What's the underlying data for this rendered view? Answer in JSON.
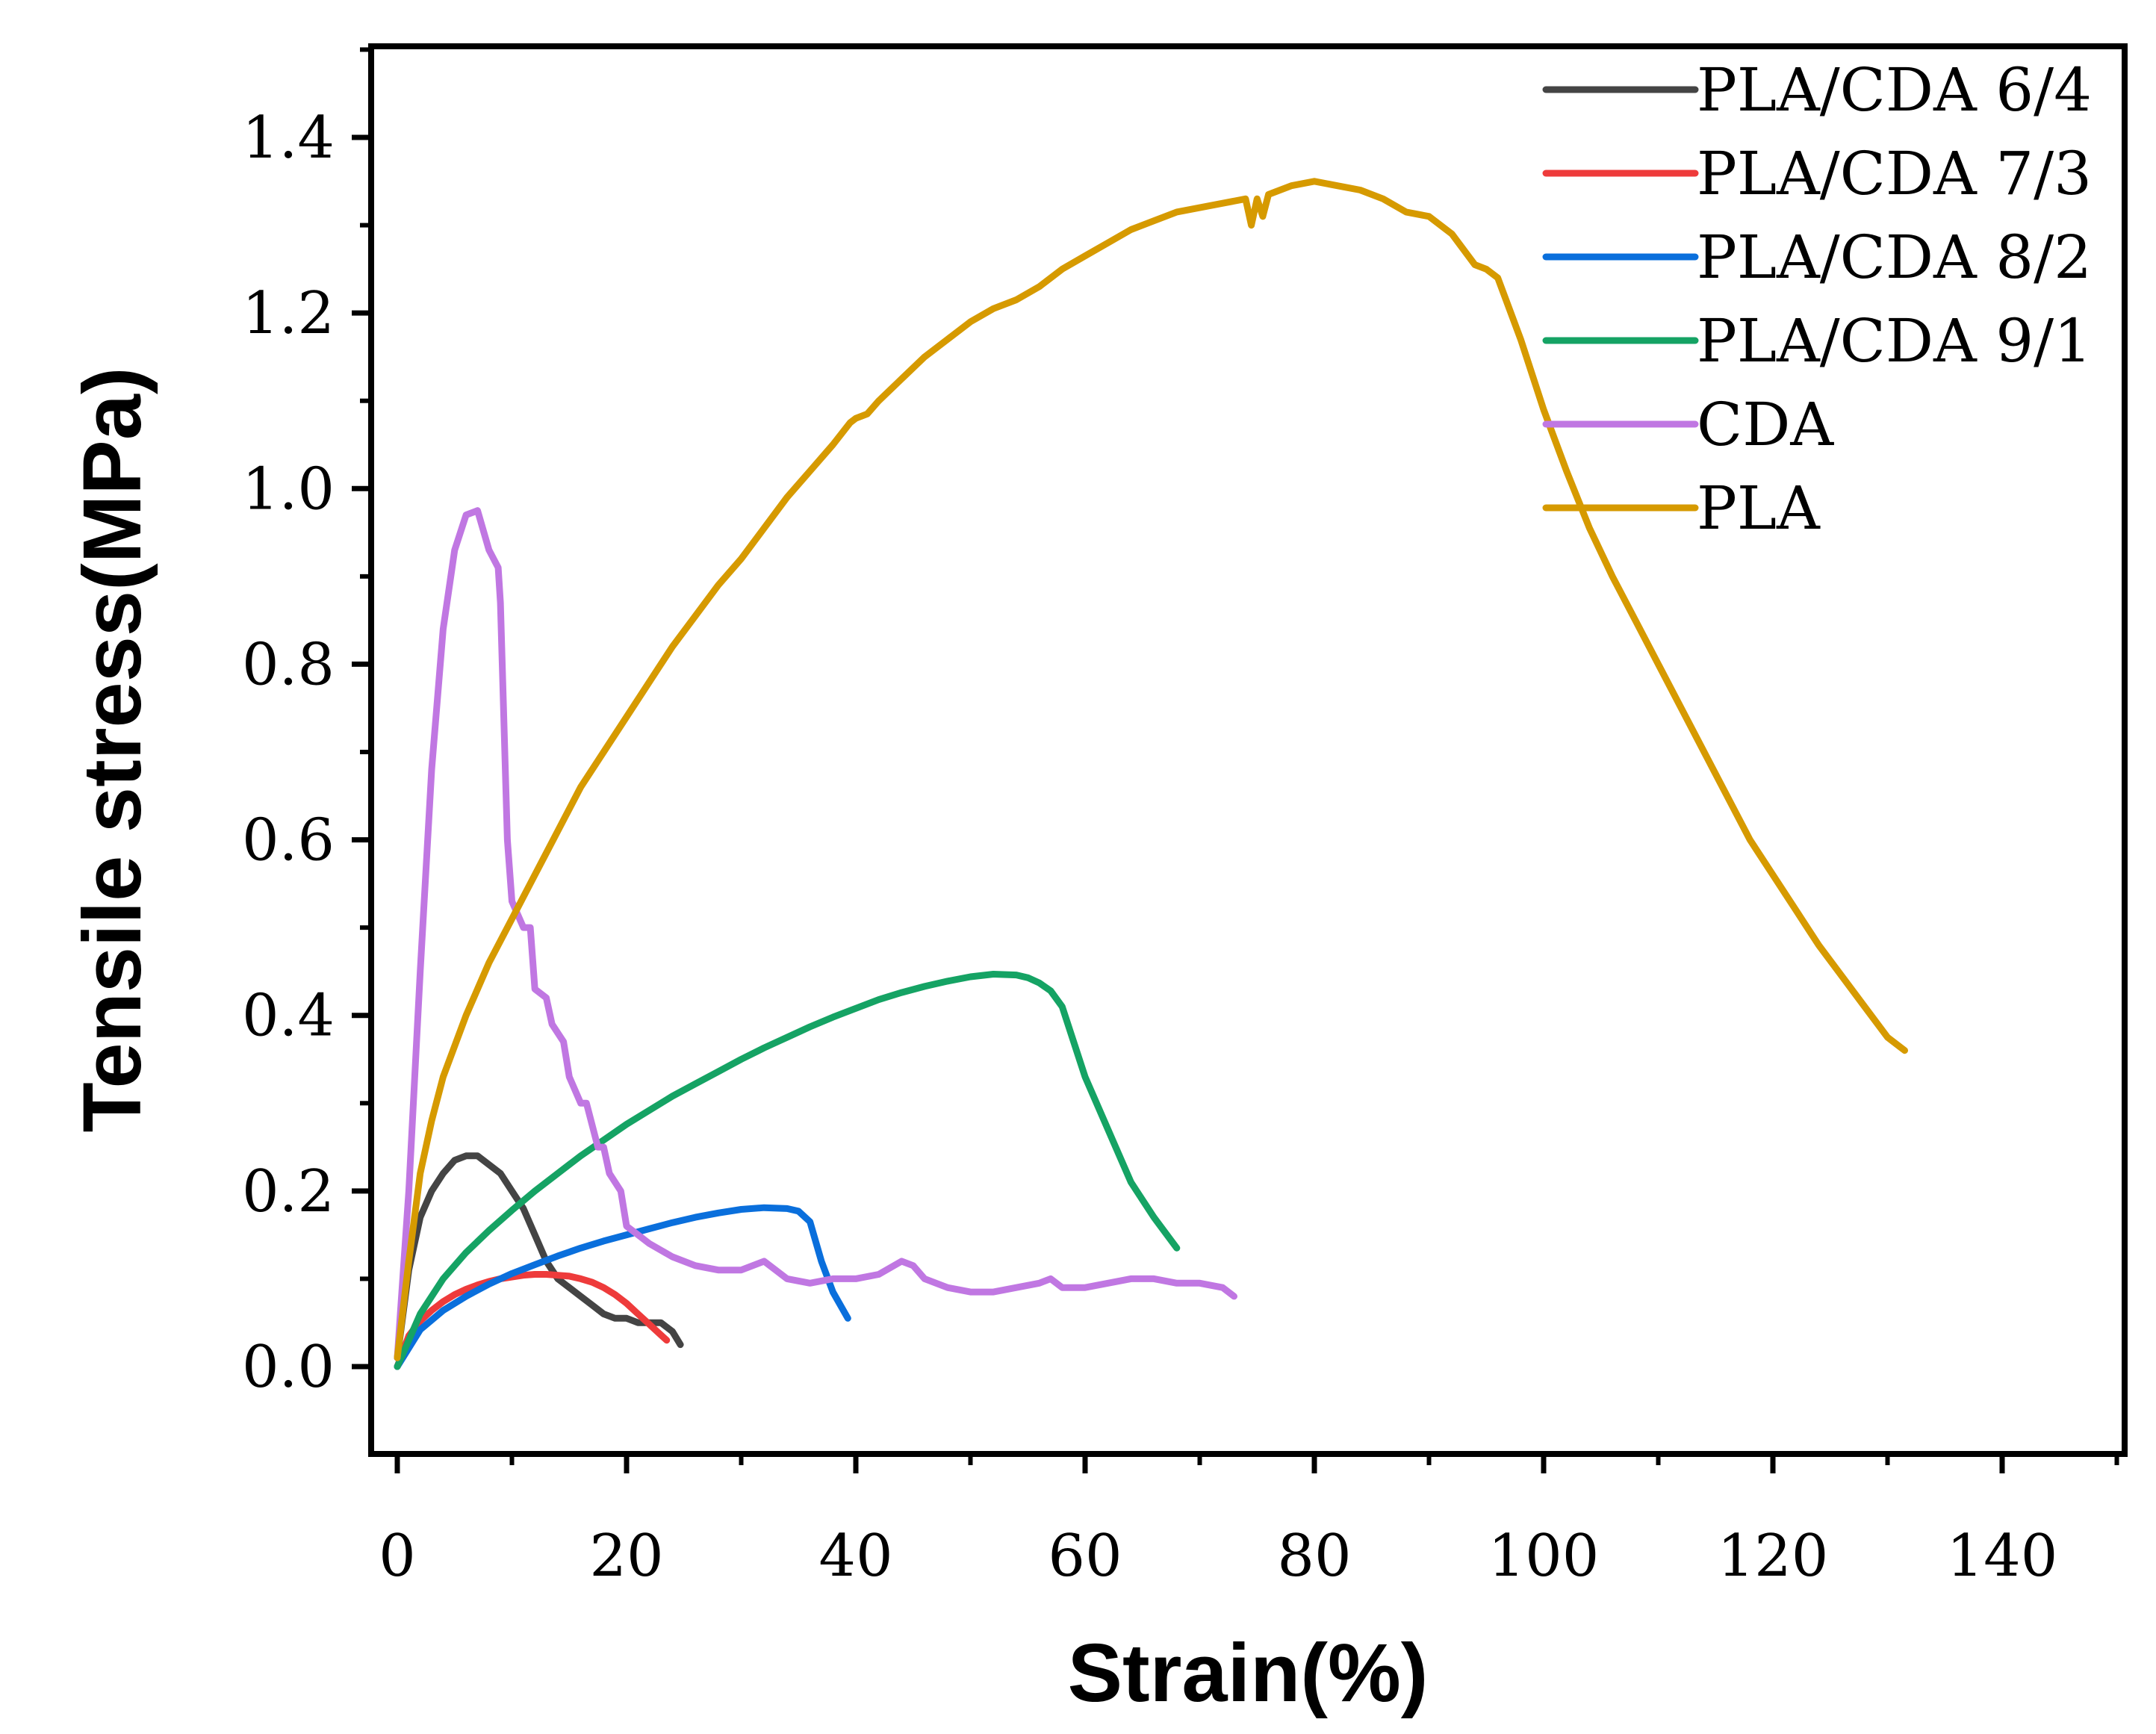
{
  "chart_data": {
    "type": "line",
    "title": "",
    "xlabel": "Strain(%)",
    "ylabel": "Tensile stress(MPa)",
    "xlim": [
      -2,
      150
    ],
    "ylim": [
      -0.1,
      1.5
    ],
    "xticks": [
      0,
      20,
      40,
      60,
      80,
      100,
      120,
      140
    ],
    "xtick_labels": [
      "0",
      "20",
      "40",
      "60",
      "80",
      "100",
      "120",
      "140"
    ],
    "yticks": [
      0.0,
      0.2,
      0.4,
      0.6,
      0.8,
      1.0,
      1.2,
      1.4
    ],
    "ytick_labels": [
      "0.0",
      "0.2",
      "0.4",
      "0.6",
      "0.8",
      "1.0",
      "1.2",
      "1.4"
    ],
    "grid": false,
    "legend_position": "top-right",
    "series": [
      {
        "name": "PLA/CDA 6/4",
        "color": "#444444",
        "x": [
          0,
          1,
          2,
          3,
          4,
          5,
          6,
          7,
          8,
          9,
          10,
          11,
          12,
          13,
          14,
          15,
          16,
          17,
          18,
          19,
          20,
          21,
          22,
          23,
          24,
          24.7
        ],
        "y": [
          0.01,
          0.11,
          0.17,
          0.2,
          0.22,
          0.235,
          0.24,
          0.24,
          0.23,
          0.22,
          0.2,
          0.18,
          0.15,
          0.12,
          0.1,
          0.09,
          0.08,
          0.07,
          0.06,
          0.055,
          0.055,
          0.05,
          0.05,
          0.05,
          0.04,
          0.025
        ]
      },
      {
        "name": "PLA/CDA 7/3",
        "color": "#EE3B3B",
        "x": [
          0,
          1,
          2,
          3,
          4,
          5,
          6,
          7,
          8,
          9,
          10,
          11,
          12,
          13,
          14,
          15,
          16,
          17,
          18,
          19,
          20,
          21,
          22,
          23,
          23.5
        ],
        "y": [
          0.0,
          0.035,
          0.052,
          0.064,
          0.074,
          0.082,
          0.088,
          0.093,
          0.097,
          0.1,
          0.102,
          0.104,
          0.105,
          0.105,
          0.104,
          0.103,
          0.1,
          0.096,
          0.09,
          0.082,
          0.072,
          0.06,
          0.048,
          0.036,
          0.03
        ]
      },
      {
        "name": "PLA/CDA 8/2",
        "color": "#0A6FDC",
        "x": [
          0,
          2,
          4,
          6,
          8,
          10,
          12,
          14,
          16,
          18,
          20,
          22,
          24,
          26,
          28,
          30,
          32,
          34,
          35,
          36,
          37,
          38,
          39.3
        ],
        "y": [
          0.0,
          0.042,
          0.064,
          0.08,
          0.094,
          0.106,
          0.116,
          0.126,
          0.135,
          0.143,
          0.15,
          0.157,
          0.164,
          0.17,
          0.175,
          0.179,
          0.181,
          0.18,
          0.177,
          0.165,
          0.12,
          0.085,
          0.055
        ]
      },
      {
        "name": "PLA/CDA 9/1",
        "color": "#15A364",
        "x": [
          0,
          2,
          4,
          6,
          8,
          10,
          12,
          14,
          16,
          18,
          20,
          22,
          24,
          26,
          28,
          30,
          32,
          34,
          36,
          38,
          40,
          42,
          44,
          46,
          48,
          50,
          52,
          54,
          55,
          56,
          57,
          58,
          60,
          62,
          64,
          66,
          68
        ],
        "y": [
          0.0,
          0.06,
          0.1,
          0.13,
          0.155,
          0.178,
          0.2,
          0.22,
          0.24,
          0.258,
          0.276,
          0.292,
          0.308,
          0.322,
          0.336,
          0.35,
          0.363,
          0.375,
          0.387,
          0.398,
          0.408,
          0.418,
          0.426,
          0.433,
          0.439,
          0.444,
          0.447,
          0.446,
          0.443,
          0.437,
          0.428,
          0.41,
          0.33,
          0.27,
          0.21,
          0.17,
          0.135
        ]
      },
      {
        "name": "CDA",
        "color": "#C077E2",
        "x": [
          0,
          1,
          2,
          3,
          4,
          5,
          6,
          7,
          8,
          8.8,
          9,
          9.6,
          10,
          11,
          11.6,
          12,
          13,
          13.5,
          14.5,
          15,
          16,
          16.5,
          17.5,
          18,
          18.5,
          19.5,
          20,
          21,
          22,
          24,
          26,
          28,
          30,
          32,
          34,
          36,
          38,
          40,
          42,
          44,
          45,
          46,
          48,
          50,
          52,
          54,
          56,
          57,
          58,
          60,
          62,
          64,
          66,
          68,
          70,
          72,
          73
        ],
        "y": [
          0.01,
          0.2,
          0.45,
          0.68,
          0.84,
          0.93,
          0.97,
          0.975,
          0.93,
          0.91,
          0.87,
          0.6,
          0.53,
          0.5,
          0.5,
          0.43,
          0.42,
          0.39,
          0.37,
          0.33,
          0.3,
          0.3,
          0.25,
          0.25,
          0.22,
          0.2,
          0.16,
          0.15,
          0.14,
          0.125,
          0.115,
          0.11,
          0.11,
          0.12,
          0.1,
          0.095,
          0.1,
          0.1,
          0.105,
          0.12,
          0.115,
          0.1,
          0.09,
          0.085,
          0.085,
          0.09,
          0.095,
          0.1,
          0.09,
          0.09,
          0.095,
          0.1,
          0.1,
          0.095,
          0.095,
          0.09,
          0.08
        ]
      },
      {
        "name": "PLA",
        "color": "#D69A00",
        "x": [
          0,
          1,
          2,
          3,
          4,
          6,
          8,
          10,
          12,
          14,
          16,
          18,
          20,
          22,
          24,
          26,
          28,
          30,
          32,
          34,
          36,
          38,
          39.5,
          40,
          41,
          42,
          44,
          46,
          48,
          50,
          52,
          54,
          56,
          58,
          60,
          62,
          64,
          66,
          68,
          70,
          72,
          74,
          74.5,
          75,
          75.5,
          76,
          78,
          80,
          82,
          84,
          86,
          88,
          90,
          92,
          94,
          95,
          96,
          98,
          100,
          102,
          104,
          106,
          108,
          110,
          112,
          114,
          116,
          118,
          120,
          122,
          124,
          126,
          128,
          130,
          131.5
        ],
        "y": [
          0.01,
          0.12,
          0.22,
          0.28,
          0.33,
          0.4,
          0.46,
          0.51,
          0.56,
          0.61,
          0.66,
          0.7,
          0.74,
          0.78,
          0.82,
          0.855,
          0.89,
          0.92,
          0.955,
          0.99,
          1.02,
          1.05,
          1.075,
          1.08,
          1.085,
          1.1,
          1.125,
          1.15,
          1.17,
          1.19,
          1.205,
          1.215,
          1.23,
          1.25,
          1.265,
          1.28,
          1.295,
          1.305,
          1.315,
          1.32,
          1.325,
          1.33,
          1.3,
          1.33,
          1.31,
          1.335,
          1.345,
          1.35,
          1.345,
          1.34,
          1.33,
          1.315,
          1.31,
          1.29,
          1.255,
          1.25,
          1.24,
          1.17,
          1.09,
          1.02,
          0.955,
          0.9,
          0.85,
          0.8,
          0.75,
          0.7,
          0.65,
          0.6,
          0.56,
          0.52,
          0.48,
          0.445,
          0.41,
          0.375,
          0.36
        ]
      }
    ]
  }
}
